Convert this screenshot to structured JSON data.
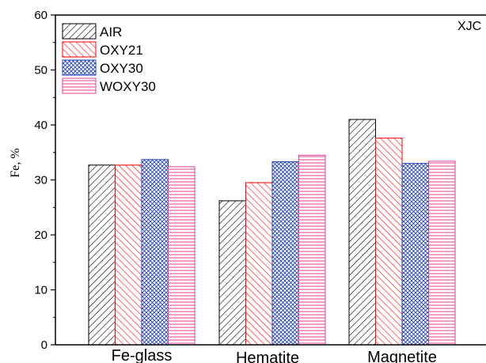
{
  "chart_data": {
    "type": "bar",
    "title": "",
    "corner_label": "XJC",
    "xlabel": "",
    "ylabel": "Fe, %",
    "ylim": [
      0,
      60
    ],
    "yticks": [
      0,
      10,
      20,
      30,
      40,
      50,
      60
    ],
    "grid": false,
    "legend_position": "top-left",
    "categories": [
      "Fe-glass",
      "Hematite",
      "Magnetite"
    ],
    "series": [
      {
        "name": "AIR",
        "values": [
          32.7,
          26.2,
          41.0
        ],
        "color": "#000000",
        "pattern": "hatch-diagonal-right"
      },
      {
        "name": "OXY21",
        "values": [
          32.7,
          29.5,
          37.6
        ],
        "color": "#ff0000",
        "pattern": "hatch-diagonal-left"
      },
      {
        "name": "OXY30",
        "values": [
          33.7,
          33.3,
          33.0
        ],
        "color": "#1f3fbf",
        "pattern": "crosshatch"
      },
      {
        "name": "WOXY30",
        "values": [
          32.4,
          34.5,
          33.4
        ],
        "color": "#e0409a",
        "pattern": "horizontal"
      }
    ]
  }
}
